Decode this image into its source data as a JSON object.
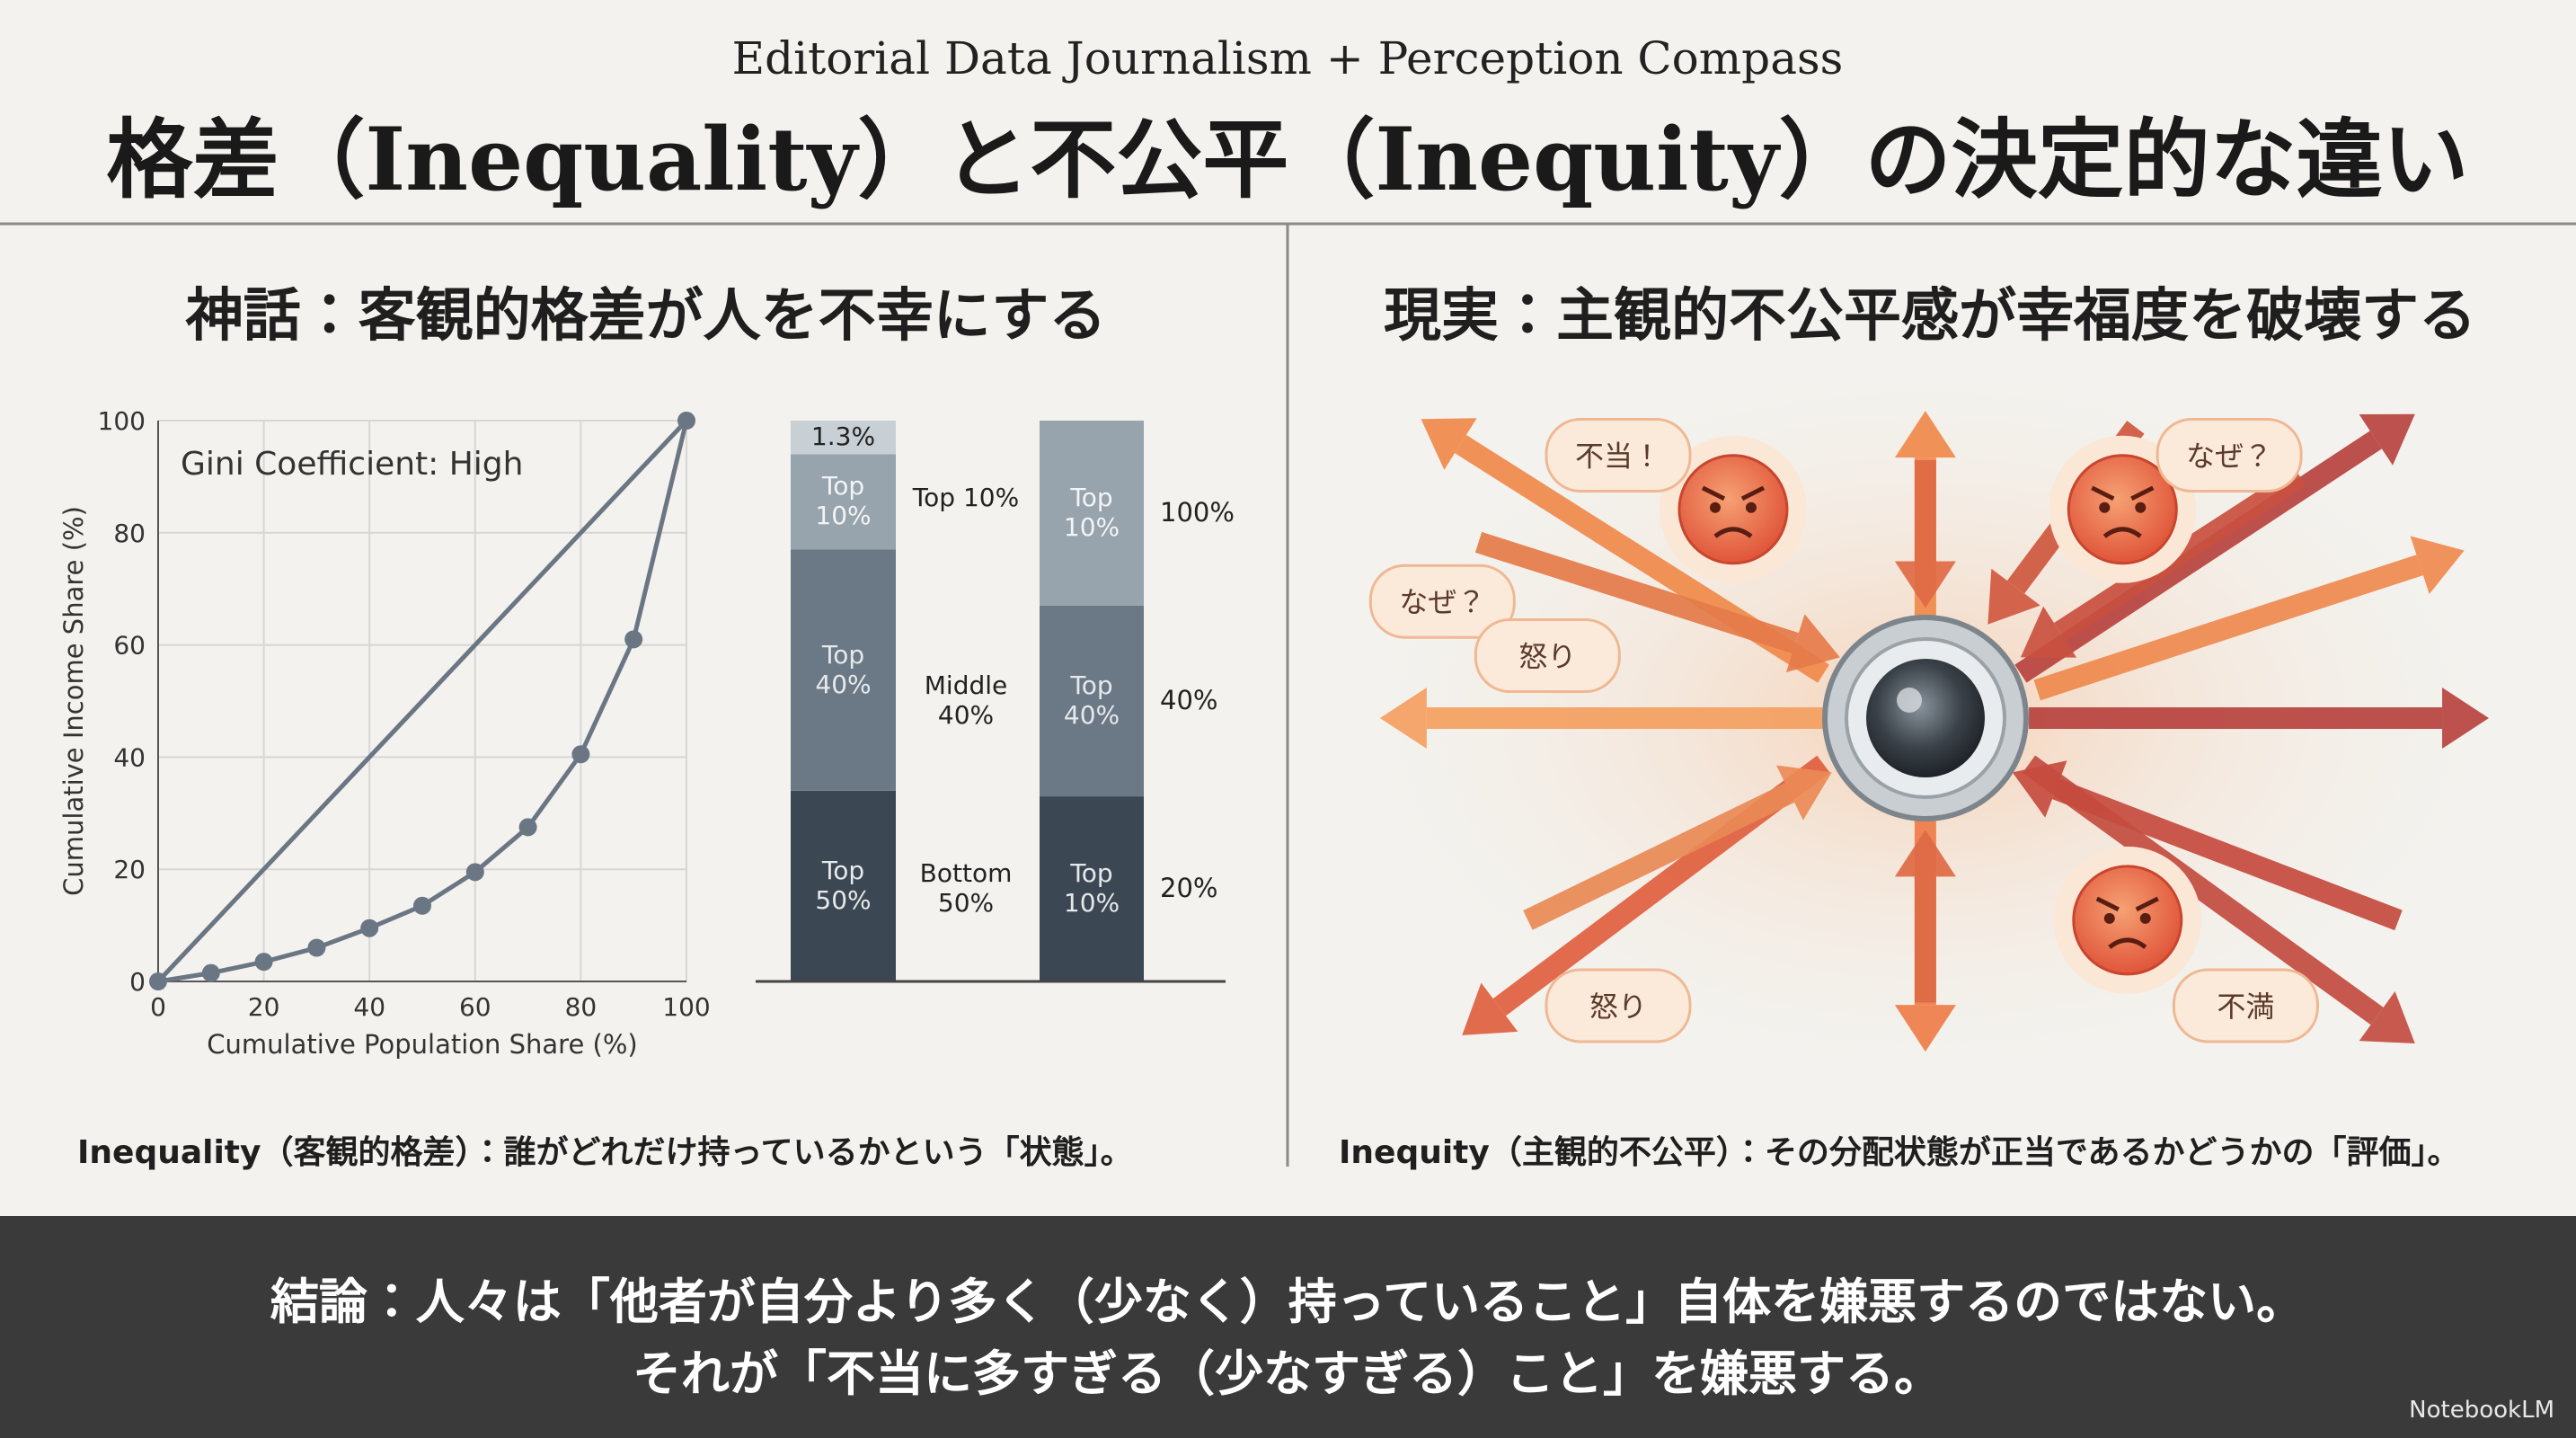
{
  "header": {
    "subtitle": "Editorial Data Journalism + Perception Compass",
    "title": "格差（Inequality）と不公平（Inequity）の決定的な違い"
  },
  "left_panel": {
    "heading": "神話：客観的格差が人を不幸にする",
    "caption": "Inequality（客観的格差）：誰がどれだけ持っているかという「状態」。"
  },
  "right_panel": {
    "heading": "現実：主観的不公平感が幸福度を破壊する",
    "caption": "Inequity（主観的不公平）：その分配状態が正当であるかどうかの「評価」。",
    "bubbles": [
      "不当！",
      "なぜ？",
      "なぜ？",
      "怒り",
      "怒り",
      "不満"
    ]
  },
  "conclusion": {
    "lines": [
      "結論：人々は「他者が自分より多く（少なく）持っていること」自体を嫌悪するのではない。",
      "それが「不当に多すぎる（少なすぎる）こと」を嫌悪する。"
    ]
  },
  "watermark": "NotebookLM",
  "chart_data": [
    {
      "type": "line",
      "annotation": "Gini Coefficient: High",
      "x_label": "Cumulative Population Share (%)",
      "y_label": "Cumulative Income Share (%)",
      "x": [
        0,
        10,
        20,
        30,
        40,
        50,
        60,
        70,
        80,
        90,
        100
      ],
      "series": [
        {
          "color": "#6b7684",
          "markers": true,
          "values": [
            0,
            1.5,
            3.5,
            6,
            9.5,
            13.5,
            19.5,
            27.5,
            40.5,
            61,
            100
          ]
        },
        {
          "color": "#6b7684",
          "markers": false,
          "values": [
            0,
            10,
            20,
            30,
            40,
            50,
            60,
            70,
            80,
            90,
            100
          ]
        }
      ],
      "xlim": [
        0,
        100
      ],
      "ylim": [
        0,
        100
      ],
      "xticks": [
        0,
        20,
        40,
        60,
        80,
        100
      ],
      "yticks": [
        0,
        20,
        40,
        60,
        80,
        100
      ],
      "grid": true
    },
    {
      "type": "stacked-bar",
      "ylim": [
        0,
        100
      ],
      "bars": [
        {
          "segments": [
            {
              "label": "Top 50%",
              "value": 34,
              "color": "#3b4752"
            },
            {
              "label": "Top 40%",
              "value": 43,
              "color": "#6b7885"
            },
            {
              "label": "Top 10%",
              "value": 17,
              "color": "#97a3ad"
            },
            {
              "label": "1.3%",
              "value": 6,
              "color": "#c8cfd5"
            }
          ]
        },
        {
          "segments": [
            {
              "label": "Top 10%",
              "value": 33,
              "color": "#3b4752"
            },
            {
              "label": "Top 40%",
              "value": 34,
              "color": "#6b7885"
            },
            {
              "label": "Top 10%",
              "value": 33,
              "color": "#97a3ad"
            }
          ]
        }
      ],
      "middle_labels": [
        "Bottom 50%",
        "Middle 40%",
        "Top 10%"
      ],
      "right_labels": [
        "20%",
        "40%",
        "100%"
      ]
    }
  ]
}
